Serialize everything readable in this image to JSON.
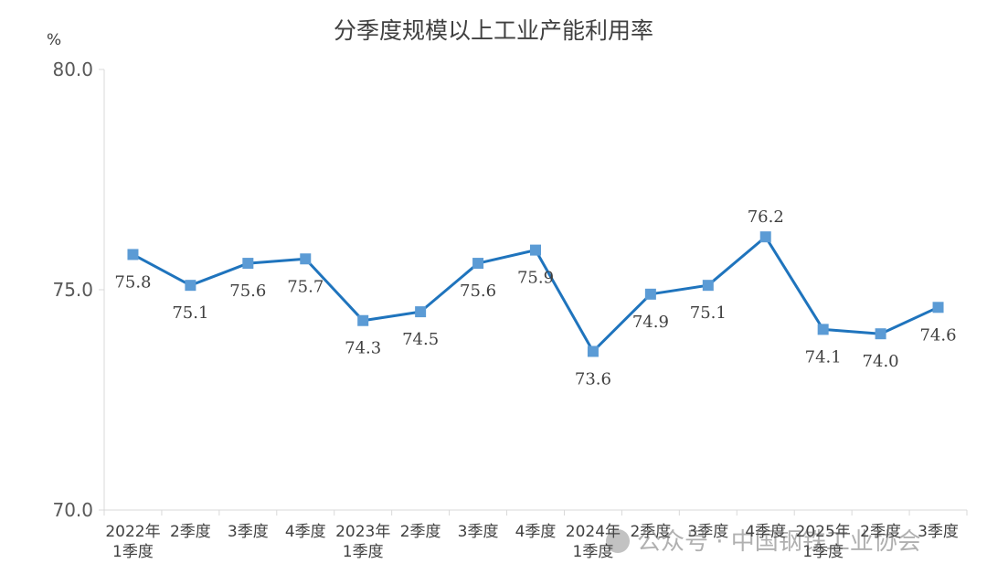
{
  "chart_data": {
    "type": "line",
    "title": "分季度规模以上工业产能利用率",
    "ylabel": "%",
    "xlabel": "",
    "ylim": [
      70.0,
      80.0
    ],
    "yticks": [
      "80.0",
      "75.0",
      "70.0"
    ],
    "categories": [
      [
        "2022年",
        "1季度"
      ],
      [
        "2季度"
      ],
      [
        "3季度"
      ],
      [
        "4季度"
      ],
      [
        "2023年",
        "1季度"
      ],
      [
        "2季度"
      ],
      [
        "3季度"
      ],
      [
        "4季度"
      ],
      [
        "2024年",
        "1季度"
      ],
      [
        "2季度"
      ],
      [
        "3季度"
      ],
      [
        "4季度"
      ],
      [
        "2025年",
        "1季度"
      ],
      [
        "2季度"
      ],
      [
        "3季度"
      ]
    ],
    "values": [
      75.8,
      75.1,
      75.6,
      75.7,
      74.3,
      74.5,
      75.6,
      75.9,
      73.6,
      74.9,
      75.1,
      76.2,
      74.1,
      74.0,
      74.6
    ],
    "data_labels": [
      "75.8",
      "75.1",
      "75.6",
      "75.7",
      "74.3",
      "74.5",
      "75.6",
      "75.9",
      "73.6",
      "74.9",
      "75.1",
      "76.2",
      "74.1",
      "74.0",
      "74.6"
    ],
    "grid": false,
    "line_color": "#1f74bd",
    "marker_color": "#5b9bd5"
  },
  "watermark": "公众号 · 中国钢铁工业协会"
}
